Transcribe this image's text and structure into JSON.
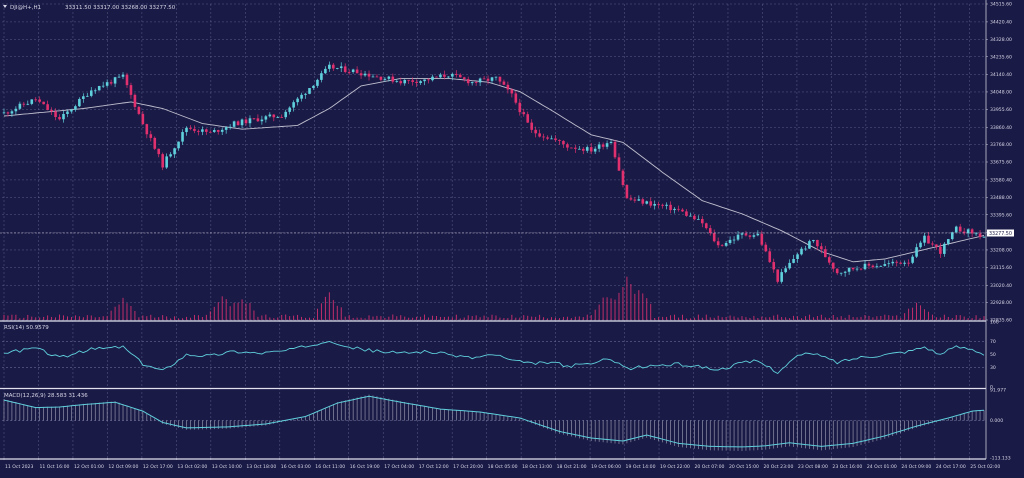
{
  "header": {
    "symbol_label": "DJI@H+,H1",
    "ohlc_label": "33311.50 33317.00 33268.00 33277.50"
  },
  "price_tag": "33277.50",
  "colors": {
    "background": "#1a1a46",
    "grid": "#7a7aa6",
    "bull": "#5fd0dc",
    "bear": "#e0306e",
    "moving_average": "#c0c0d0",
    "indicator_line": "#5fd0dc",
    "volume": "#d0306e"
  },
  "chart_data": [
    {
      "type": "candlestick",
      "title": "DJI@H+,H1",
      "price_axis_ticks": [
        34515.6,
        34420.4,
        34328.0,
        34235.6,
        34140.4,
        34048.0,
        33955.6,
        33860.4,
        33768.0,
        33675.6,
        33580.4,
        33488.0,
        33395.6,
        33300.4,
        33208.0,
        33115.6,
        33020.4,
        32928.0,
        32835.6
      ],
      "ylim": [
        32835.6,
        34515.6
      ],
      "time_axis_labels": [
        "11 Oct 2023",
        "11 Oct 16:00",
        "12 Oct 01:00",
        "12 Oct 09:00",
        "12 Oct 17:00",
        "13 Oct 02:00",
        "13 Oct 10:00",
        "13 Oct 18:00",
        "16 Oct 03:00",
        "16 Oct 11:00",
        "16 Oct 19:00",
        "17 Oct 04:00",
        "17 Oct 12:00",
        "17 Oct 20:00",
        "18 Oct 05:00",
        "18 Oct 13:00",
        "18 Oct 21:00",
        "19 Oct 06:00",
        "19 Oct 14:00",
        "19 Oct 22:00",
        "20 Oct 07:00",
        "20 Oct 15:00",
        "20 Oct 23:00",
        "23 Oct 08:00",
        "23 Oct 16:00",
        "24 Oct 01:00",
        "24 Oct 09:00",
        "24 Oct 17:00",
        "25 Oct 02:00"
      ],
      "close_anchors": [
        [
          0,
          33935
        ],
        [
          8,
          34010
        ],
        [
          14,
          33900
        ],
        [
          22,
          34060
        ],
        [
          30,
          34130
        ],
        [
          35,
          33880
        ],
        [
          40,
          33660
        ],
        [
          46,
          33860
        ],
        [
          52,
          33830
        ],
        [
          58,
          33880
        ],
        [
          64,
          33905
        ],
        [
          70,
          33925
        ],
        [
          76,
          34050
        ],
        [
          82,
          34180
        ],
        [
          88,
          34160
        ],
        [
          94,
          34130
        ],
        [
          100,
          34105
        ],
        [
          106,
          34110
        ],
        [
          112,
          34140
        ],
        [
          118,
          34100
        ],
        [
          124,
          34120
        ],
        [
          128,
          34030
        ],
        [
          133,
          33840
        ],
        [
          138,
          33800
        ],
        [
          142,
          33760
        ],
        [
          148,
          33740
        ],
        [
          153,
          33790
        ],
        [
          157,
          33480
        ],
        [
          164,
          33450
        ],
        [
          170,
          33420
        ],
        [
          176,
          33350
        ],
        [
          180,
          33230
        ],
        [
          186,
          33290
        ],
        [
          190,
          33290
        ],
        [
          195,
          33050
        ],
        [
          200,
          33190
        ],
        [
          204,
          33260
        ],
        [
          210,
          33090
        ],
        [
          216,
          33120
        ],
        [
          222,
          33130
        ],
        [
          228,
          33150
        ],
        [
          232,
          33270
        ],
        [
          236,
          33200
        ],
        [
          240,
          33320
        ],
        [
          244,
          33300
        ],
        [
          247,
          33278
        ]
      ],
      "moving_average_anchors": [
        [
          0,
          33920
        ],
        [
          20,
          33960
        ],
        [
          32,
          33995
        ],
        [
          40,
          33960
        ],
        [
          50,
          33880
        ],
        [
          60,
          33850
        ],
        [
          74,
          33870
        ],
        [
          82,
          33960
        ],
        [
          90,
          34080
        ],
        [
          100,
          34120
        ],
        [
          112,
          34120
        ],
        [
          122,
          34100
        ],
        [
          130,
          34050
        ],
        [
          138,
          33950
        ],
        [
          148,
          33820
        ],
        [
          156,
          33780
        ],
        [
          166,
          33620
        ],
        [
          176,
          33470
        ],
        [
          186,
          33400
        ],
        [
          196,
          33310
        ],
        [
          206,
          33200
        ],
        [
          214,
          33145
        ],
        [
          222,
          33160
        ],
        [
          232,
          33210
        ],
        [
          240,
          33250
        ],
        [
          247,
          33285
        ]
      ],
      "volume_spikes": [
        [
          30,
          0.45
        ],
        [
          55,
          0.55
        ],
        [
          60,
          0.5
        ],
        [
          82,
          0.6
        ],
        [
          152,
          0.55
        ],
        [
          157,
          1.0
        ],
        [
          160,
          0.7
        ],
        [
          230,
          0.35
        ]
      ]
    },
    {
      "type": "line",
      "title": "RSI(14) 50.9579",
      "ylim": [
        0,
        100
      ],
      "y_ticks": [
        100,
        70,
        50,
        30,
        0
      ],
      "anchors": [
        [
          0,
          52
        ],
        [
          8,
          60
        ],
        [
          14,
          45
        ],
        [
          22,
          58
        ],
        [
          30,
          62
        ],
        [
          35,
          35
        ],
        [
          40,
          25
        ],
        [
          46,
          50
        ],
        [
          52,
          48
        ],
        [
          58,
          55
        ],
        [
          64,
          52
        ],
        [
          70,
          55
        ],
        [
          76,
          62
        ],
        [
          82,
          72
        ],
        [
          88,
          60
        ],
        [
          94,
          55
        ],
        [
          100,
          52
        ],
        [
          106,
          55
        ],
        [
          112,
          50
        ],
        [
          118,
          45
        ],
        [
          124,
          50
        ],
        [
          128,
          40
        ],
        [
          133,
          36
        ],
        [
          138,
          38
        ],
        [
          142,
          32
        ],
        [
          148,
          36
        ],
        [
          153,
          44
        ],
        [
          157,
          28
        ],
        [
          164,
          33
        ],
        [
          170,
          35
        ],
        [
          176,
          31
        ],
        [
          180,
          26
        ],
        [
          186,
          37
        ],
        [
          190,
          40
        ],
        [
          195,
          23
        ],
        [
          200,
          48
        ],
        [
          204,
          52
        ],
        [
          210,
          38
        ],
        [
          216,
          46
        ],
        [
          222,
          50
        ],
        [
          228,
          55
        ],
        [
          232,
          62
        ],
        [
          236,
          50
        ],
        [
          240,
          62
        ],
        [
          244,
          58
        ],
        [
          247,
          51
        ]
      ]
    },
    {
      "type": "line",
      "title": "MACD(12,26,9) 28.583 31.436",
      "ylim": [
        -113.133,
        91.977
      ],
      "y_ticks": [
        91.977,
        0.0,
        -113.133
      ],
      "anchors": [
        [
          0,
          65
        ],
        [
          8,
          40
        ],
        [
          14,
          42
        ],
        [
          20,
          50
        ],
        [
          28,
          58
        ],
        [
          35,
          28
        ],
        [
          40,
          -10
        ],
        [
          46,
          -28
        ],
        [
          56,
          -25
        ],
        [
          66,
          -15
        ],
        [
          76,
          10
        ],
        [
          84,
          55
        ],
        [
          92,
          78
        ],
        [
          100,
          58
        ],
        [
          110,
          35
        ],
        [
          120,
          25
        ],
        [
          130,
          5
        ],
        [
          140,
          -40
        ],
        [
          148,
          -62
        ],
        [
          156,
          -72
        ],
        [
          162,
          -52
        ],
        [
          170,
          -80
        ],
        [
          178,
          -90
        ],
        [
          186,
          -92
        ],
        [
          192,
          -88
        ],
        [
          198,
          -78
        ],
        [
          206,
          -90
        ],
        [
          214,
          -80
        ],
        [
          222,
          -55
        ],
        [
          230,
          -22
        ],
        [
          238,
          5
        ],
        [
          244,
          28
        ],
        [
          247,
          31
        ]
      ]
    }
  ]
}
